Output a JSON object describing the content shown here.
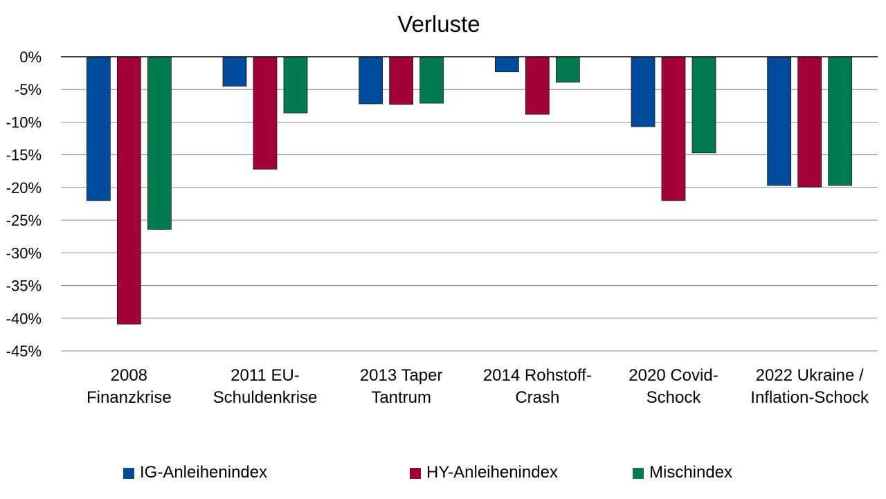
{
  "chart_data": {
    "type": "bar",
    "title": "Verluste",
    "xlabel": "",
    "ylabel": "",
    "ylim": [
      -45,
      0
    ],
    "yticks": [
      "0%",
      "-5%",
      "-10%",
      "-15%",
      "-20%",
      "-25%",
      "-30%",
      "-35%",
      "-40%",
      "-45%"
    ],
    "grid": true,
    "legend_position": "bottom",
    "categories": [
      [
        "2008",
        "Finanzkrise"
      ],
      [
        "2011 EU-",
        "Schuldenkrise"
      ],
      [
        "2013 Taper",
        "Tantrum"
      ],
      [
        "2014 Rohstoff-",
        "Crash"
      ],
      [
        "2020 Covid-",
        "Schock"
      ],
      [
        "2022 Ukraine /",
        "Inflation-Schock"
      ]
    ],
    "series": [
      {
        "name": "IG-Anleihenindex",
        "color": "#004b9b",
        "values": [
          -22.0,
          -4.5,
          -7.2,
          -2.3,
          -10.7,
          -19.7
        ]
      },
      {
        "name": "HY-Anleihenindex",
        "color": "#a3003a",
        "values": [
          -40.9,
          -17.2,
          -7.3,
          -8.8,
          -22.0,
          -19.9
        ]
      },
      {
        "name": "Mischindex",
        "color": "#007a4e",
        "values": [
          -26.4,
          -8.6,
          -7.1,
          -3.9,
          -14.7,
          -19.7
        ]
      }
    ]
  }
}
